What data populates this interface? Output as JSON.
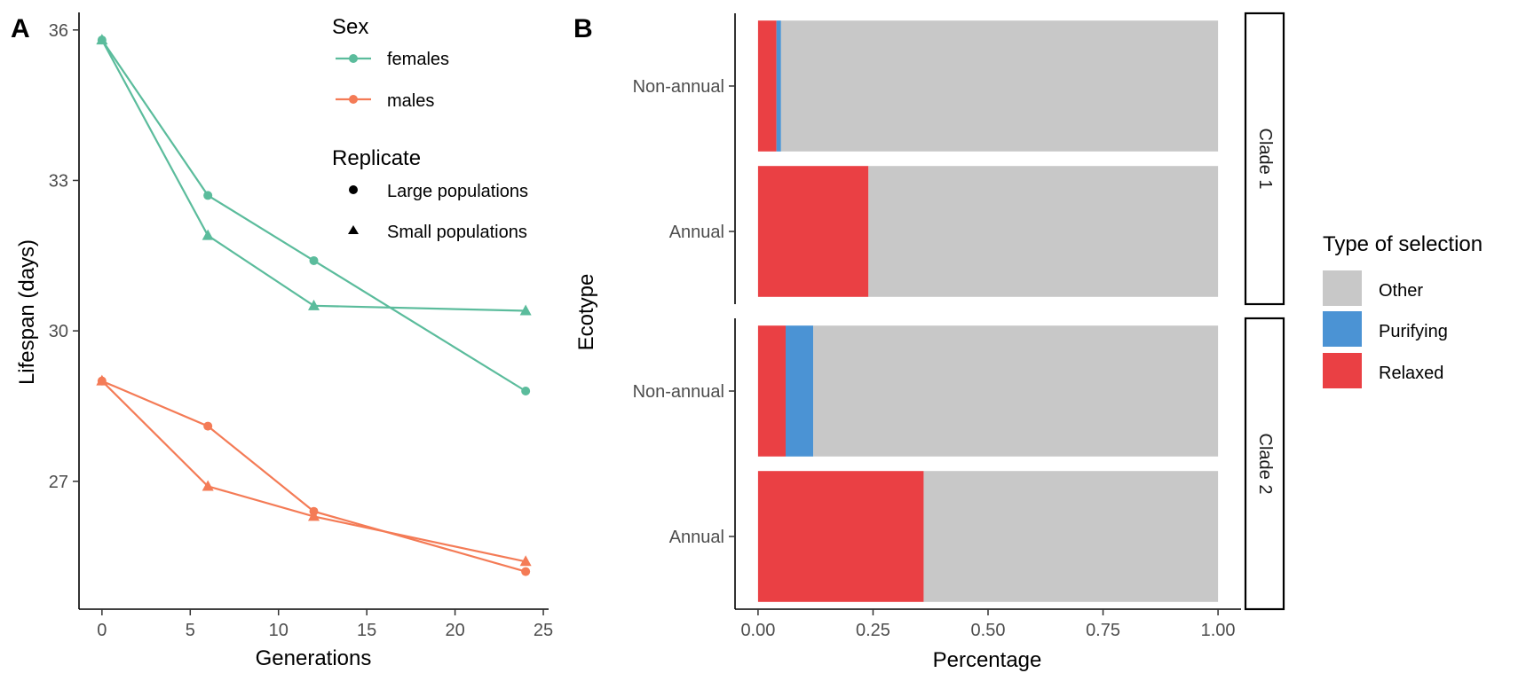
{
  "chart_data": [
    {
      "panel": "A",
      "type": "line",
      "xlabel": "Generations",
      "ylabel": "Lifespan (days)",
      "xlim": [
        -1.3,
        25.3
      ],
      "ylim": [
        24.45,
        36.35
      ],
      "xticks": [
        0,
        5,
        10,
        15,
        20,
        25
      ],
      "yticks": [
        27,
        30,
        33,
        36
      ],
      "legend": {
        "placement": "top-right",
        "sex_title": "Sex",
        "sex_entries": [
          {
            "key": "females",
            "label": "females",
            "color": "#5bbc9c"
          },
          {
            "key": "males",
            "label": "males",
            "color": "#f47b56"
          }
        ],
        "replicate_title": "Replicate",
        "replicate_entries": [
          {
            "key": "large",
            "label": "Large populations",
            "shape": "circle"
          },
          {
            "key": "small",
            "label": "Small populations",
            "shape": "triangle"
          }
        ]
      },
      "series": [
        {
          "sex": "females",
          "replicate": "large",
          "x": [
            0,
            6,
            12,
            24
          ],
          "y": [
            35.8,
            32.7,
            31.4,
            28.8
          ]
        },
        {
          "sex": "females",
          "replicate": "small",
          "x": [
            0,
            6,
            12,
            24
          ],
          "y": [
            35.8,
            31.9,
            30.5,
            30.4
          ]
        },
        {
          "sex": "males",
          "replicate": "large",
          "x": [
            0,
            6,
            12,
            24
          ],
          "y": [
            29.0,
            28.1,
            26.4,
            25.2
          ]
        },
        {
          "sex": "males",
          "replicate": "small",
          "x": [
            0,
            6,
            12,
            24
          ],
          "y": [
            29.0,
            26.9,
            26.3,
            25.4
          ]
        }
      ]
    },
    {
      "panel": "B",
      "type": "bar",
      "orientation": "horizontal",
      "stacked": true,
      "xlabel": "Percentage",
      "ylabel": "Ecotype",
      "xlim": [
        -0.05,
        1.05
      ],
      "xticks": [
        "0.00",
        "0.25",
        "0.50",
        "0.75",
        "1.00"
      ],
      "categories": [
        "Non-annual",
        "Annual"
      ],
      "legend": {
        "placement": "right",
        "title": "Type of selection",
        "entries": [
          {
            "key": "other",
            "label": "Other",
            "color": "#c8c8c8"
          },
          {
            "key": "purifying",
            "label": "Purifying",
            "color": "#4b93d4"
          },
          {
            "key": "relaxed",
            "label": "Relaxed",
            "color": "#ea4044"
          }
        ]
      },
      "facets": [
        {
          "label": "Clade 1",
          "bars": [
            {
              "category": "Non-annual",
              "relaxed": 0.04,
              "purifying": 0.01,
              "other": 0.95
            },
            {
              "category": "Annual",
              "relaxed": 0.24,
              "purifying": 0.0,
              "other": 0.76
            }
          ]
        },
        {
          "label": "Clade 2",
          "bars": [
            {
              "category": "Non-annual",
              "relaxed": 0.06,
              "purifying": 0.06,
              "other": 0.88
            },
            {
              "category": "Annual",
              "relaxed": 0.36,
              "purifying": 0.0,
              "other": 0.64
            }
          ]
        }
      ]
    }
  ]
}
